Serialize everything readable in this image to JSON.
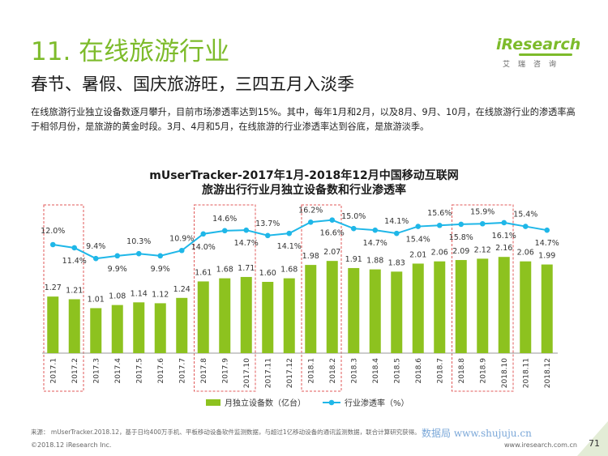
{
  "section_title": "11. 在线旅游行业",
  "headline": "春节、暑假、国庆旅游旺，三四五月入淡季",
  "description": "在线旅游行业独立设备数逐月攀升，目前市场渗透率达到15%。其中，每年1月和2月，以及8月、9月、10月，在线旅游行业的渗透率高于相邻月份，是旅游的黄金时段。3月、4月和5月，在线旅游的行业渗透率达到谷底，是旅游淡季。",
  "logo": {
    "text": "iResearch",
    "subtitle": "艾瑞咨询"
  },
  "chart_data": {
    "type": "bar",
    "title_line1": "mUserTracker-2017年1月-2018年12月中国移动互联网",
    "title_line2": "旅游出行行业月独立设备数和行业渗透率",
    "categories": [
      "2017.1",
      "2017.2",
      "2017.3",
      "2017.4",
      "2017.5",
      "2017.6",
      "2017.7",
      "2017.8",
      "2017.9",
      "2017.10",
      "2017.11",
      "2017.12",
      "2018.1",
      "2018.2",
      "2018.3",
      "2018.4",
      "2018.5",
      "2018.6",
      "2018.7",
      "2018.8",
      "2018.9",
      "2018.10",
      "2018.11",
      "2018.12"
    ],
    "bar_labels": [
      "1.27",
      "1.21",
      "1.01",
      "1.08",
      "1.14",
      "1.12",
      "1.24",
      "1.61",
      "1.68",
      "1.71",
      "1.60",
      "1.68",
      "1.98",
      "2.07",
      "1.91",
      "1.88",
      "1.83",
      "2.01",
      "2.06",
      "2.09",
      "2.12",
      "2.16",
      "2.06",
      "1.99"
    ],
    "line_labels": [
      "12.0%",
      "11.4%",
      "9.4%",
      "9.9%",
      "10.3%",
      "9.9%",
      "10.9%",
      "14.0%",
      "14.6%",
      "14.7%",
      "13.7%",
      "14.1%",
      "16.2%",
      "16.6%",
      "15.0%",
      "14.7%",
      "14.1%",
      "15.4%",
      "15.6%",
      "15.8%",
      "15.9%",
      "16.1%",
      "15.4%",
      "14.7%"
    ],
    "series": [
      {
        "name": "月独立设备数（亿台）",
        "type": "bar",
        "color": "#8dc21f",
        "values": [
          1.27,
          1.21,
          1.01,
          1.08,
          1.14,
          1.12,
          1.24,
          1.61,
          1.68,
          1.71,
          1.6,
          1.68,
          1.98,
          2.07,
          1.91,
          1.88,
          1.83,
          2.01,
          2.06,
          2.09,
          2.12,
          2.16,
          2.06,
          1.99
        ]
      },
      {
        "name": "行业渗透率（%）",
        "type": "line",
        "color": "#1fb7e8",
        "values": [
          12.0,
          11.4,
          9.4,
          9.9,
          10.3,
          9.9,
          10.9,
          14.0,
          14.6,
          14.7,
          13.7,
          14.1,
          16.2,
          16.6,
          15.0,
          14.7,
          14.1,
          15.4,
          15.6,
          15.8,
          15.9,
          16.1,
          15.4,
          14.7
        ]
      }
    ],
    "highlight_groups": [
      [
        0,
        1
      ],
      [
        7,
        9
      ],
      [
        12,
        13
      ],
      [
        19,
        21
      ]
    ],
    "legend_position": "bottom"
  },
  "footer": {
    "source": "来源：  mUserTracker.2018.12，基于日均400万手机、平板移动设备软件监测数据，与超过1亿移动设备的通讯监测数据，联合计算研究获得。",
    "copyright": "©2018.12 iResearch Inc.",
    "url": "www.iresearch.com.cn",
    "page_number": "71",
    "watermark": "数据局 www.shujuju.cn"
  },
  "colors": {
    "brand_green": "#7dbb2b",
    "bar": "#8dc21f",
    "line": "#1fb7e8",
    "highlight_box": "#e05a5a"
  }
}
